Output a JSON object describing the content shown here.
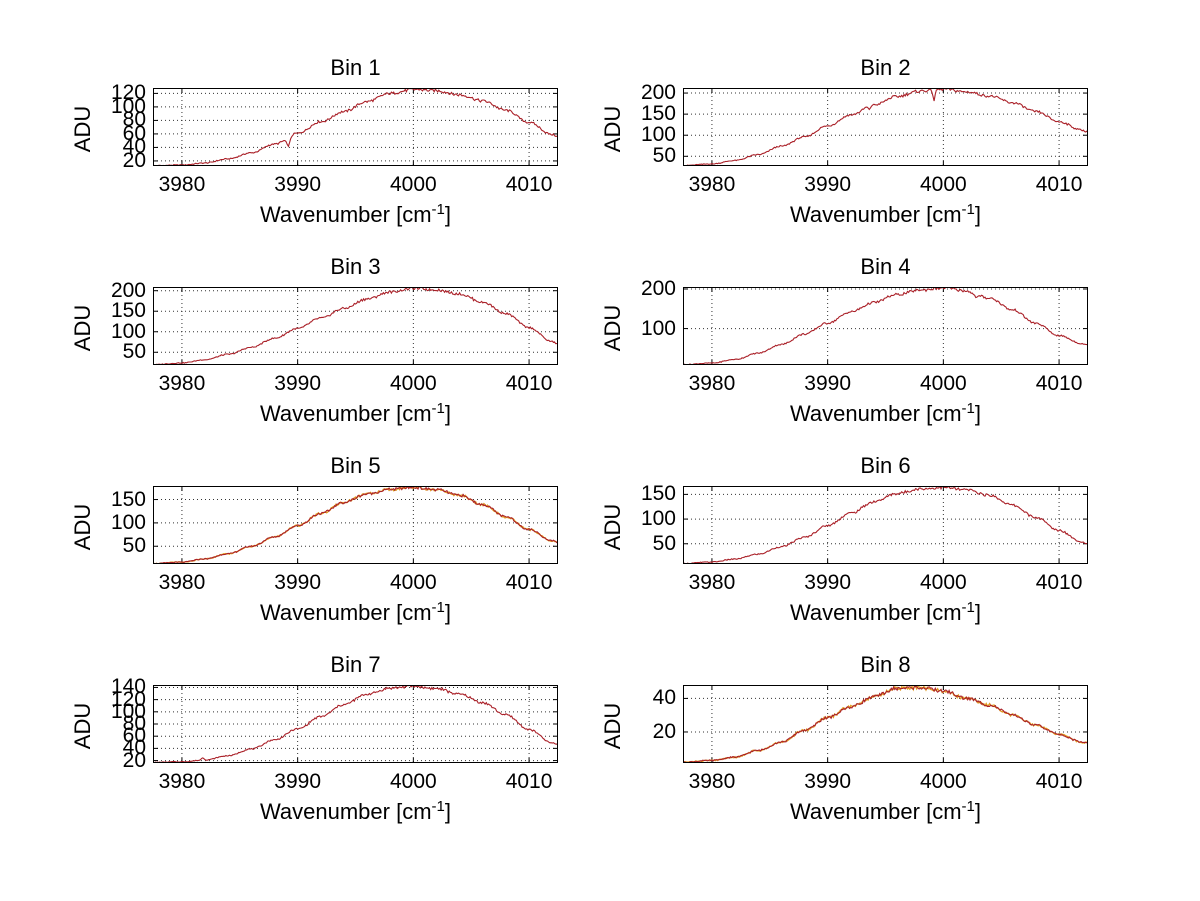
{
  "figure": {
    "background": "#ffffff",
    "style": {
      "line_color": "#aa2028",
      "secondary_line_color": "#e09a1e",
      "grid_color": "#333333",
      "axis_color": "#000000",
      "text_color": "#000000"
    }
  },
  "axes_shared": {
    "xlabel": "Wavenumber [cm⁻¹]",
    "ylabel": "ADU",
    "xlim": [
      3977.5,
      4012.5
    ],
    "x_ticks": [
      3980,
      3990,
      4000,
      4010
    ],
    "grid": true,
    "grid_linestyle": "dotted"
  },
  "labels": {
    "ylabel": "ADU",
    "xlabel_main": "Wavenumber [cm",
    "xlabel_sup": "-1",
    "xlabel_close": "]"
  },
  "chart_data": [
    {
      "type": "line",
      "title": "Bin 1",
      "xlabel": "Wavenumber [cm⁻¹]",
      "ylabel": "ADU",
      "xlim": [
        3977.5,
        4012.5
      ],
      "x_ticks": [
        3980,
        3990,
        4000,
        4010
      ],
      "ylim": [
        12.5,
        128
      ],
      "y_ticks": [
        20,
        40,
        60,
        80,
        100,
        120
      ],
      "envelope_x": [
        3977.5,
        3980,
        3982,
        3984,
        3986,
        3988,
        3990,
        3992,
        3994,
        3996,
        3998,
        4000,
        4002,
        4004,
        4006,
        4008,
        4010,
        4012,
        4012.5
      ],
      "envelope_y": [
        13,
        14,
        17,
        23,
        32,
        45,
        61,
        78,
        93,
        108,
        120,
        126,
        124,
        118,
        109,
        95,
        77,
        59,
        56
      ],
      "noise": 2.2,
      "seed": 1,
      "two_lines": false,
      "features": [
        {
          "x": 3989.2,
          "w": 0.22,
          "d": 13
        }
      ]
    },
    {
      "type": "line",
      "title": "Bin 2",
      "xlabel": "Wavenumber [cm⁻¹]",
      "ylabel": "ADU",
      "xlim": [
        3977.5,
        4012.5
      ],
      "x_ticks": [
        3980,
        3990,
        4000,
        4010
      ],
      "ylim": [
        27,
        212
      ],
      "y_ticks": [
        50,
        100,
        150,
        200
      ],
      "envelope_x": [
        3977.5,
        3980,
        3982,
        3984,
        3986,
        3988,
        3990,
        3992,
        3994,
        3996,
        3998,
        4000,
        4002,
        4004,
        4006,
        4008,
        4010,
        4012,
        4012.5
      ],
      "envelope_y": [
        28,
        32,
        40,
        54,
        74,
        96,
        122,
        148,
        172,
        192,
        205,
        209,
        203,
        193,
        177,
        156,
        132,
        112,
        108
      ],
      "noise": 3.2,
      "seed": 2,
      "two_lines": false,
      "features": [
        {
          "x": 3993.6,
          "w": 0.12,
          "d": 11
        },
        {
          "x": 3999.2,
          "w": 0.12,
          "d": 26
        }
      ]
    },
    {
      "type": "line",
      "title": "Bin 3",
      "xlabel": "Wavenumber [cm⁻¹]",
      "ylabel": "ADU",
      "xlim": [
        3977.5,
        4012.5
      ],
      "x_ticks": [
        3980,
        3990,
        4000,
        4010
      ],
      "ylim": [
        19,
        209
      ],
      "y_ticks": [
        50,
        100,
        150,
        200
      ],
      "envelope_x": [
        3977.5,
        3980,
        3982,
        3984,
        3986,
        3988,
        3990,
        3992,
        3994,
        3996,
        3998,
        4000,
        4002,
        4004,
        4006,
        4008,
        4010,
        4012,
        4012.5
      ],
      "envelope_y": [
        20,
        24,
        32,
        45,
        62,
        84,
        108,
        133,
        157,
        180,
        197,
        206,
        202,
        192,
        172,
        144,
        110,
        76,
        70
      ],
      "noise": 3.2,
      "seed": 3,
      "two_lines": false,
      "features": []
    },
    {
      "type": "line",
      "title": "Bin 4",
      "xlabel": "Wavenumber [cm⁻¹]",
      "ylabel": "ADU",
      "xlim": [
        3977.5,
        4012.5
      ],
      "x_ticks": [
        3980,
        3990,
        4000,
        4010
      ],
      "ylim": [
        8,
        205
      ],
      "y_ticks": [
        100,
        200
      ],
      "envelope_x": [
        3977.5,
        3980,
        3982,
        3984,
        3986,
        3988,
        3990,
        3992,
        3994,
        3996,
        3998,
        4000,
        4002,
        4004,
        4006,
        4008,
        4010,
        4012,
        4012.5
      ],
      "envelope_y": [
        9,
        13,
        22,
        38,
        60,
        86,
        114,
        142,
        166,
        186,
        197,
        203,
        195,
        177,
        147,
        113,
        82,
        62,
        58
      ],
      "noise": 3.4,
      "seed": 4,
      "two_lines": false,
      "features": [
        {
          "x": 4002.8,
          "w": 0.3,
          "d": 9
        }
      ]
    },
    {
      "type": "line",
      "title": "Bin 5",
      "xlabel": "Wavenumber [cm⁻¹]",
      "ylabel": "ADU",
      "xlim": [
        3977.5,
        4012.5
      ],
      "x_ticks": [
        3980,
        3990,
        4000,
        4010
      ],
      "ylim": [
        12,
        179
      ],
      "y_ticks": [
        50,
        100,
        150
      ],
      "envelope_x": [
        3977.5,
        3980,
        3982,
        3984,
        3986,
        3988,
        3990,
        3992,
        3994,
        3996,
        3998,
        4000,
        4002,
        4004,
        4006,
        4008,
        4010,
        4012,
        4012.5
      ],
      "envelope_y": [
        13,
        16,
        23,
        34,
        50,
        70,
        94,
        120,
        144,
        162,
        172,
        176,
        171,
        159,
        139,
        113,
        86,
        62,
        58
      ],
      "noise": 3.0,
      "seed": 5,
      "two_lines": true,
      "features": []
    },
    {
      "type": "line",
      "title": "Bin 6",
      "xlabel": "Wavenumber [cm⁻¹]",
      "ylabel": "ADU",
      "xlim": [
        3977.5,
        4012.5
      ],
      "x_ticks": [
        3980,
        3990,
        4000,
        4010
      ],
      "ylim": [
        9,
        167
      ],
      "y_ticks": [
        50,
        100,
        150
      ],
      "envelope_x": [
        3977.5,
        3980,
        3982,
        3984,
        3986,
        3988,
        3990,
        3992,
        3994,
        3996,
        3998,
        4000,
        4002,
        4004,
        4006,
        4008,
        4010,
        4012,
        4012.5
      ],
      "envelope_y": [
        10,
        13,
        19,
        29,
        44,
        63,
        87,
        112,
        135,
        152,
        161,
        164,
        159,
        148,
        128,
        103,
        77,
        54,
        50
      ],
      "noise": 3.0,
      "seed": 6,
      "two_lines": false,
      "features": []
    },
    {
      "type": "line",
      "title": "Bin 7",
      "xlabel": "Wavenumber [cm⁻¹]",
      "ylabel": "ADU",
      "xlim": [
        3977.5,
        4012.5
      ],
      "x_ticks": [
        3980,
        3990,
        4000,
        4010
      ],
      "ylim": [
        16,
        144
      ],
      "y_ticks": [
        20,
        40,
        60,
        80,
        100,
        120,
        140
      ],
      "envelope_x": [
        3977.5,
        3980,
        3982,
        3984,
        3986,
        3988,
        3990,
        3992,
        3994,
        3996,
        3998,
        4000,
        4002,
        4004,
        4006,
        4008,
        4010,
        4012,
        4012.5
      ],
      "envelope_y": [
        17,
        18,
        21,
        28,
        39,
        54,
        72,
        92,
        112,
        129,
        139,
        142,
        138,
        129,
        115,
        95,
        71,
        49,
        46
      ],
      "noise": 2.2,
      "seed": 7,
      "two_lines": false,
      "features": [
        {
          "x": 3981.8,
          "w": 0.15,
          "d": -4
        }
      ]
    },
    {
      "type": "line",
      "title": "Bin 8",
      "xlabel": "Wavenumber [cm⁻¹]",
      "ylabel": "ADU",
      "xlim": [
        3977.5,
        4012.5
      ],
      "x_ticks": [
        3980,
        3990,
        4000,
        4010
      ],
      "ylim": [
        1.5,
        48
      ],
      "y_ticks": [
        20,
        40
      ],
      "envelope_x": [
        3977.5,
        3980,
        3982,
        3984,
        3986,
        3988,
        3990,
        3992,
        3994,
        3996,
        3998,
        4000,
        4002,
        4004,
        4006,
        4008,
        4010,
        4012,
        4012.5
      ],
      "envelope_y": [
        2,
        3,
        5,
        9,
        14,
        21,
        28.5,
        35,
        41,
        46,
        46.5,
        44.5,
        40,
        36,
        30,
        24,
        18.5,
        14,
        13.5
      ],
      "noise": 1.1,
      "seed": 8,
      "two_lines": true,
      "features": []
    }
  ]
}
